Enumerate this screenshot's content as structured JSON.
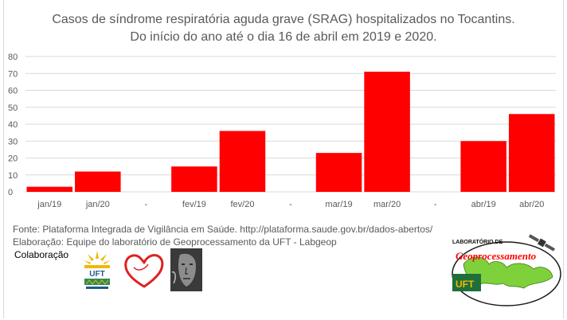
{
  "chart_data": {
    "type": "bar",
    "title": "Casos de síndrome respiratória aguda grave (SRAG) hospitalizados no Tocantins.",
    "subtitle": "Do início do ano até o dia 16 de abril em 2019 e 2020.",
    "categories": [
      "jan/19",
      "jan/20",
      "-",
      "fev/19",
      "fev/20",
      "-",
      "mar/19",
      "mar/20",
      "-",
      "abr/19",
      "abr/20"
    ],
    "values": [
      3,
      12,
      0,
      15,
      36,
      0,
      23,
      71,
      0,
      30,
      46
    ],
    "ylim": [
      0,
      80
    ],
    "yticks": [
      "0",
      "10",
      "20",
      "30",
      "40",
      "50",
      "60",
      "70",
      "80"
    ],
    "xlabel": "",
    "ylabel": "",
    "grid": true,
    "legend": "none",
    "bar_color": "#ff0000"
  },
  "footer": {
    "fonte": "Fonte:  Plataforma Integrada de Vigilância em Saúde.  http://plataforma.saude.gov.br/dados-abertos/",
    "elaboracao": "Elaboração: Equipe do laboratório de Geoprocessamento da UFT  - Labgeop",
    "colaboracao": "Colaboração"
  },
  "logos": {
    "uft_text": "UFT",
    "lab_top": "LABORATÓRIO DE",
    "lab_script": "Geoprocessamento",
    "lab_uft": "UFT"
  }
}
